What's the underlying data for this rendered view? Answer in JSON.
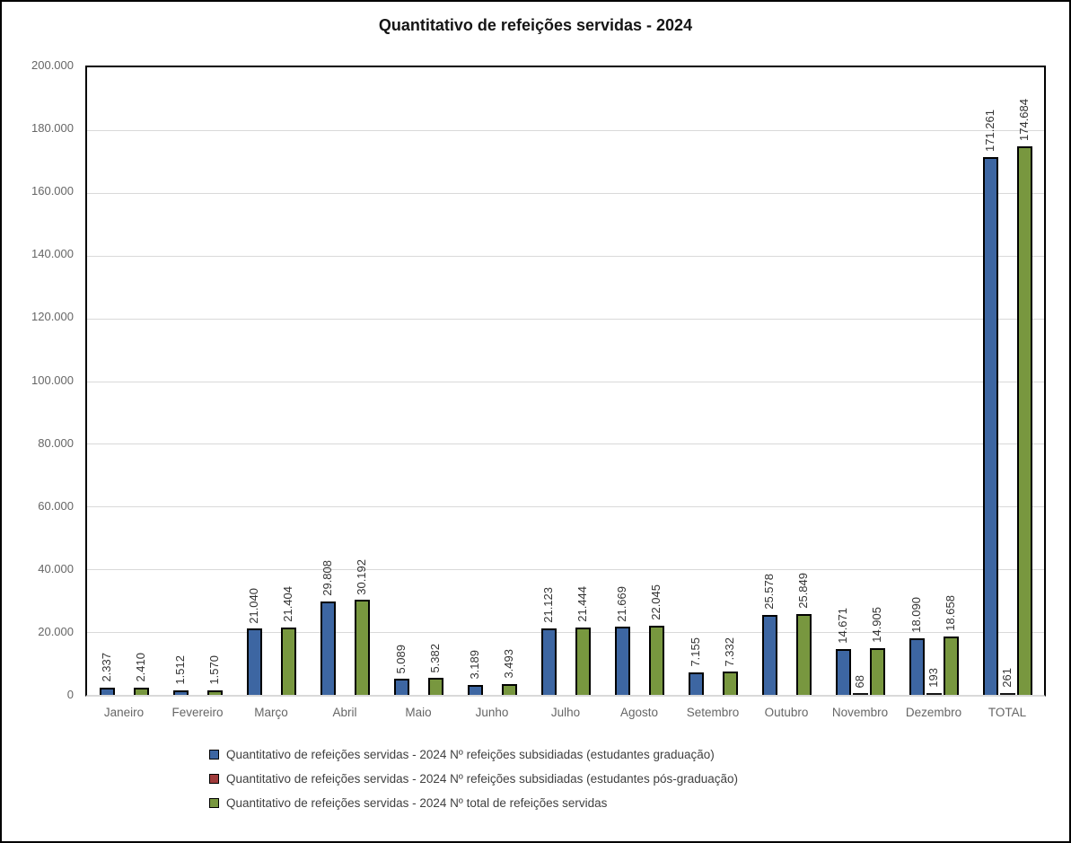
{
  "title": "Quantitativo de refeições servidas - 2024",
  "chart_data": {
    "type": "bar",
    "title": "Quantitativo de refeições servidas - 2024",
    "categories": [
      "Janeiro",
      "Fevereiro",
      "Março",
      "Abril",
      "Maio",
      "Junho",
      "Julho",
      "Agosto",
      "Setembro",
      "Outubro",
      "Novembro",
      "Dezembro",
      "TOTAL"
    ],
    "series": [
      {
        "name": "Quantitativo de refeições servidas - 2024 Nº refeições subsidiadas (estudantes graduação)",
        "color": "#3d66a2",
        "values": [
          2337,
          1512,
          21040,
          29808,
          5089,
          3189,
          21123,
          21669,
          7155,
          25578,
          14671,
          18090,
          171261
        ],
        "labels": [
          "2.337",
          "1.512",
          "21.040",
          "29.808",
          "5.089",
          "3.189",
          "21.123",
          "21.669",
          "7.155",
          "25.578",
          "14.671",
          "18.090",
          "171.261"
        ]
      },
      {
        "name": "Quantitativo de refeições servidas - 2024 Nº refeições subsidiadas (estudantes pós-graduação)",
        "color": "#a03b3b",
        "values": [
          null,
          null,
          null,
          null,
          null,
          null,
          null,
          null,
          null,
          null,
          68,
          193,
          261
        ],
        "labels": [
          null,
          null,
          null,
          null,
          null,
          null,
          null,
          null,
          null,
          null,
          "68",
          "193",
          "261"
        ]
      },
      {
        "name": "Quantitativo de refeições servidas - 2024 Nº total de refeições servidas",
        "color": "#78973f",
        "values": [
          2410,
          1570,
          21404,
          30192,
          5382,
          3493,
          21444,
          22045,
          7332,
          25849,
          14905,
          18658,
          174684
        ],
        "labels": [
          "2.410",
          "1.570",
          "21.404",
          "30.192",
          "5.382",
          "3.493",
          "21.444",
          "22.045",
          "7.332",
          "25.849",
          "14.905",
          "18.658",
          "174.684"
        ]
      }
    ],
    "y_ticks_top_to_bottom": [
      "200.000",
      "180.000",
      "160.000",
      "140.000",
      "120.000",
      "100.000",
      "80.000",
      "60.000",
      "40.000",
      "20.000",
      "0"
    ],
    "ylim": [
      0,
      200000
    ],
    "grid": true,
    "legend_position": "bottom-left",
    "bar_outline_color": "#000000",
    "gridline_color": "#d9d9d9",
    "axis_text_color": "#666666"
  }
}
